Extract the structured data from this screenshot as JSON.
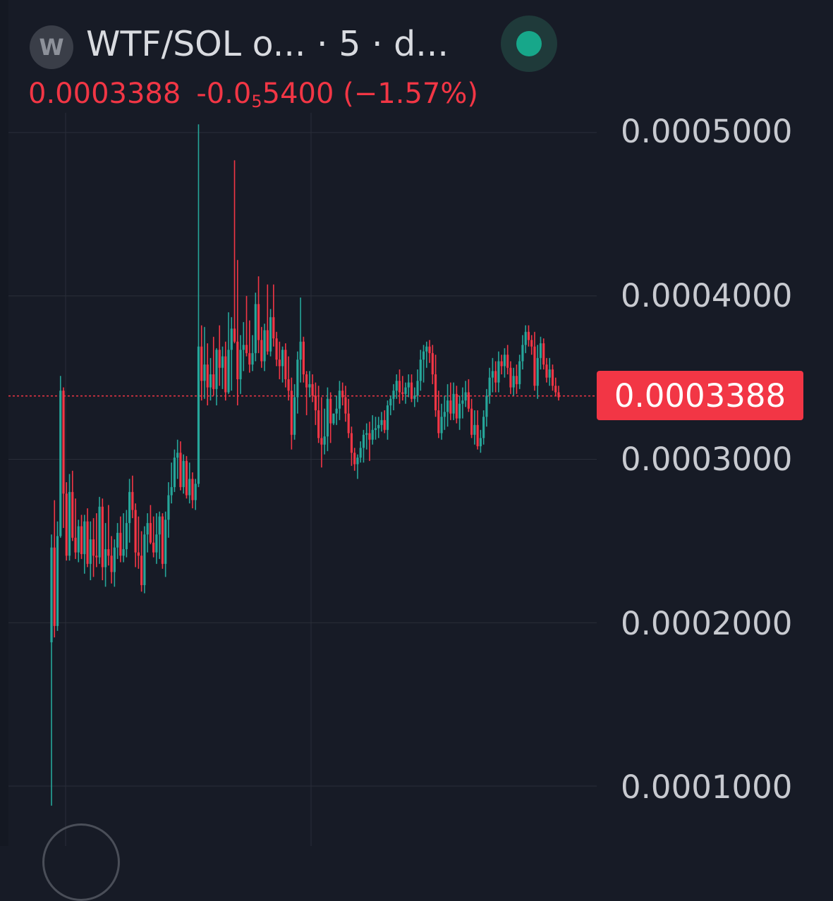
{
  "header": {
    "logo_letter": "W",
    "symbol_title": "WTF/SOL o... · 5 · d...",
    "price_main": "0.0003388",
    "change_prefix": "-0.0",
    "change_subscript": "5",
    "change_suffix": "5400",
    "change_percent": "(−1.57%)"
  },
  "price_badge": "0.0003388",
  "colors": {
    "background": "#171b26",
    "up": "#26a69a",
    "down": "#f23645",
    "grid": "#2a2e39",
    "live": "#17a78a"
  },
  "icons": {
    "live_status": "live-dot-icon"
  },
  "chart_data": {
    "type": "candlestick",
    "title": "WTF/SOL o... · 5 · d...",
    "y_ticks": [
      "0.0005000",
      "0.0004000",
      "0.0003000",
      "0.0002000",
      "0.0001000"
    ],
    "y_tick_values": [
      0.0005,
      0.0004,
      0.0003,
      0.0002,
      0.0001
    ],
    "ylim": [
      8.05e-05,
      0.0005055
    ],
    "last_price": 0.0003388,
    "grid": true,
    "candles": [
      [
        0.000188,
        0.000254,
        8.8e-05,
        0.000246
      ],
      [
        0.000246,
        0.000275,
        0.000191,
        0.000198
      ],
      [
        0.000198,
        0.000262,
        0.000195,
        0.000253
      ],
      [
        0.000253,
        0.000351,
        0.000252,
        0.000342
      ],
      [
        0.000342,
        0.000344,
        0.000258,
        0.000279
      ],
      [
        0.000279,
        0.000286,
        0.000238,
        0.000241
      ],
      [
        0.000241,
        0.000291,
        0.000238,
        0.00028
      ],
      [
        0.00028,
        0.000293,
        0.00025,
        0.000252
      ],
      [
        0.000252,
        0.000276,
        0.000239,
        0.000243
      ],
      [
        0.000243,
        0.000263,
        0.000237,
        0.000259
      ],
      [
        0.000259,
        0.000266,
        0.000239,
        0.000242
      ],
      [
        0.000242,
        0.000266,
        0.00023,
        0.000262
      ],
      [
        0.000262,
        0.00027,
        0.000234,
        0.000236
      ],
      [
        0.000236,
        0.000262,
        0.000226,
        0.000251
      ],
      [
        0.000251,
        0.000264,
        0.000228,
        0.000241
      ],
      [
        0.000241,
        0.000267,
        0.000234,
        0.00024
      ],
      [
        0.00024,
        0.000277,
        0.000236,
        0.000271
      ],
      [
        0.000271,
        0.000276,
        0.000226,
        0.000234
      ],
      [
        0.000234,
        0.000261,
        0.000222,
        0.000245
      ],
      [
        0.000245,
        0.000272,
        0.000235,
        0.000241
      ],
      [
        0.000241,
        0.000253,
        0.000224,
        0.000231
      ],
      [
        0.000231,
        0.000251,
        0.000222,
        0.000246
      ],
      [
        0.000246,
        0.000261,
        0.000239,
        0.000255
      ],
      [
        0.000255,
        0.000265,
        0.000237,
        0.000241
      ],
      [
        0.000241,
        0.000267,
        0.000237,
        0.000245
      ],
      [
        0.000245,
        0.000269,
        0.00024,
        0.000261
      ],
      [
        0.000261,
        0.000288,
        0.000249,
        0.00028
      ],
      [
        0.00028,
        0.00029,
        0.000264,
        0.000269
      ],
      [
        0.000269,
        0.000273,
        0.000234,
        0.000243
      ],
      [
        0.000243,
        0.000265,
        0.000233,
        0.000241
      ],
      [
        0.000241,
        0.000256,
        0.000219,
        0.000223
      ],
      [
        0.000223,
        0.000259,
        0.000218,
        0.000254
      ],
      [
        0.000254,
        0.000267,
        0.000243,
        0.000261
      ],
      [
        0.000261,
        0.000272,
        0.000248,
        0.000249
      ],
      [
        0.000249,
        0.000265,
        0.00024,
        0.000243
      ],
      [
        0.000243,
        0.000267,
        0.000236,
        0.000254
      ],
      [
        0.000254,
        0.000268,
        0.000239,
        0.000265
      ],
      [
        0.000265,
        0.000267,
        0.000233,
        0.000236
      ],
      [
        0.000236,
        0.000268,
        0.000228,
        0.000263
      ],
      [
        0.000263,
        0.000286,
        0.000252,
        0.000278
      ],
      [
        0.000278,
        0.000298,
        0.000273,
        0.000283
      ],
      [
        0.000283,
        0.000306,
        0.00028,
        0.000301
      ],
      [
        0.000301,
        0.000312,
        0.000288,
        0.000304
      ],
      [
        0.000304,
        0.000311,
        0.000281,
        0.000283
      ],
      [
        0.000283,
        0.000303,
        0.000279,
        0.000299
      ],
      [
        0.000299,
        0.000302,
        0.000276,
        0.000278
      ],
      [
        0.000278,
        0.000298,
        0.000273,
        0.000288
      ],
      [
        0.000288,
        0.000292,
        0.00027,
        0.000275
      ],
      [
        0.000275,
        0.000288,
        0.000269,
        0.000285
      ],
      [
        0.000285,
        0.000505,
        0.000283,
        0.000369
      ],
      [
        0.000369,
        0.000382,
        0.000336,
        0.000348
      ],
      [
        0.000348,
        0.000381,
        0.000337,
        0.000358
      ],
      [
        0.000358,
        0.000371,
        0.000333,
        0.000344
      ],
      [
        0.000344,
        0.000362,
        0.000336,
        0.000352
      ],
      [
        0.000352,
        0.000375,
        0.000339,
        0.000343
      ],
      [
        0.000343,
        0.000368,
        0.000333,
        0.000367
      ],
      [
        0.000367,
        0.000382,
        0.000345,
        0.000356
      ],
      [
        0.000356,
        0.000369,
        0.000343,
        0.000363
      ],
      [
        0.000363,
        0.000372,
        0.000336,
        0.000341
      ],
      [
        0.000341,
        0.00039,
        0.00034,
        0.000367
      ],
      [
        0.000367,
        0.000387,
        0.000342,
        0.00038
      ],
      [
        0.00038,
        0.000483,
        0.000371,
        0.000372
      ],
      [
        0.000372,
        0.000422,
        0.000333,
        0.000349
      ],
      [
        0.000349,
        0.000376,
        0.00034,
        0.000367
      ],
      [
        0.000367,
        0.000384,
        0.000354,
        0.00037
      ],
      [
        0.00037,
        0.0004,
        0.000363,
        0.000365
      ],
      [
        0.000365,
        0.000385,
        0.000353,
        0.000358
      ],
      [
        0.000358,
        0.000376,
        0.000354,
        0.000365
      ],
      [
        0.000365,
        0.000402,
        0.00036,
        0.000395
      ],
      [
        0.000395,
        0.000412,
        0.000365,
        0.000373
      ],
      [
        0.000373,
        0.000381,
        0.000356,
        0.00036
      ],
      [
        0.00036,
        0.000383,
        0.000354,
        0.000379
      ],
      [
        0.000379,
        0.000407,
        0.000364,
        0.000366
      ],
      [
        0.000366,
        0.000392,
        0.000363,
        0.000387
      ],
      [
        0.000387,
        0.000407,
        0.000369,
        0.000374
      ],
      [
        0.000374,
        0.000378,
        0.000357,
        0.000361
      ],
      [
        0.000361,
        0.000372,
        0.000349,
        0.000357
      ],
      [
        0.000357,
        0.000369,
        0.000347,
        0.000367
      ],
      [
        0.000367,
        0.000371,
        0.000344,
        0.000349
      ],
      [
        0.000349,
        0.000363,
        0.000336,
        0.000342
      ],
      [
        0.000342,
        0.00035,
        0.000306,
        0.000315
      ],
      [
        0.000315,
        0.000346,
        0.000312,
        0.000338
      ],
      [
        0.000338,
        0.000366,
        0.000328,
        0.000361
      ],
      [
        0.000361,
        0.000399,
        0.000347,
        0.000372
      ],
      [
        0.000372,
        0.000375,
        0.000347,
        0.000352
      ],
      [
        0.000352,
        0.000354,
        0.000327,
        0.000344
      ],
      [
        0.000344,
        0.000354,
        0.000338,
        0.000346
      ],
      [
        0.000346,
        0.000352,
        0.000335,
        0.000339
      ],
      [
        0.000339,
        0.000347,
        0.000321,
        0.00033
      ],
      [
        0.00033,
        0.000345,
        0.00031,
        0.000313
      ],
      [
        0.000313,
        0.000338,
        0.000295,
        0.000309
      ],
      [
        0.000309,
        0.000331,
        0.000303,
        0.000314
      ],
      [
        0.000314,
        0.000344,
        0.000305,
        0.000337
      ],
      [
        0.000337,
        0.000341,
        0.00031,
        0.000322
      ],
      [
        0.000322,
        0.000328,
        0.000321,
        0.000328
      ],
      [
        0.000328,
        0.000339,
        0.000321,
        0.000331
      ],
      [
        0.000331,
        0.000348,
        0.000324,
        0.000342
      ],
      [
        0.000342,
        0.000347,
        0.000333,
        0.000338
      ],
      [
        0.000338,
        0.000345,
        0.000323,
        0.000328
      ],
      [
        0.000328,
        0.000337,
        0.000313,
        0.000316
      ],
      [
        0.000316,
        0.00032,
        0.000296,
        0.000304
      ],
      [
        0.000304,
        0.000307,
        0.000293,
        0.000297
      ],
      [
        0.000297,
        0.000303,
        0.000288,
        0.000301
      ],
      [
        0.000301,
        0.000311,
        0.000298,
        0.000307
      ],
      [
        0.000307,
        0.000318,
        0.000298,
        0.000315
      ],
      [
        0.000315,
        0.000322,
        0.000306,
        0.000316
      ],
      [
        0.000316,
        0.000323,
        0.000299,
        0.000312
      ],
      [
        0.000312,
        0.000327,
        0.000309,
        0.000318
      ],
      [
        0.000318,
        0.000326,
        0.000312,
        0.000319
      ],
      [
        0.000319,
        0.000326,
        0.000313,
        0.000321
      ],
      [
        0.000321,
        0.000329,
        0.000317,
        0.000324
      ],
      [
        0.000324,
        0.00033,
        0.000316,
        0.000318
      ],
      [
        0.000318,
        0.000336,
        0.000312,
        0.000333
      ],
      [
        0.000333,
        0.000339,
        0.000327,
        0.000337
      ],
      [
        0.000337,
        0.000346,
        0.00033,
        0.000342
      ],
      [
        0.000342,
        0.000352,
        0.000337,
        0.000348
      ],
      [
        0.000348,
        0.000355,
        0.000334,
        0.000341
      ],
      [
        0.000341,
        0.000351,
        0.000336,
        0.00034
      ],
      [
        0.00034,
        0.000347,
        0.000334,
        0.000344
      ],
      [
        0.000344,
        0.000352,
        0.000338,
        0.000347
      ],
      [
        0.000347,
        0.000352,
        0.000335,
        0.000337
      ],
      [
        0.000337,
        0.000344,
        0.000332,
        0.000339
      ],
      [
        0.000339,
        0.000355,
        0.000335,
        0.000348
      ],
      [
        0.000348,
        0.000367,
        0.000342,
        0.000361
      ],
      [
        0.000361,
        0.00037,
        0.000347,
        0.000366
      ],
      [
        0.000366,
        0.000372,
        0.000356,
        0.000369
      ],
      [
        0.000369,
        0.000373,
        0.000359,
        0.000365
      ],
      [
        0.000365,
        0.00037,
        0.000346,
        0.000352
      ],
      [
        0.000352,
        0.000364,
        0.000326,
        0.00033
      ],
      [
        0.00033,
        0.000342,
        0.000313,
        0.000316
      ],
      [
        0.000316,
        0.000334,
        0.000312,
        0.000326
      ],
      [
        0.000326,
        0.000339,
        0.000318,
        0.000329
      ],
      [
        0.000329,
        0.000346,
        0.00032,
        0.000336
      ],
      [
        0.000336,
        0.000347,
        0.000324,
        0.000328
      ],
      [
        0.000328,
        0.000347,
        0.000324,
        0.00034
      ],
      [
        0.00034,
        0.000345,
        0.000322,
        0.000325
      ],
      [
        0.000325,
        0.000339,
        0.000318,
        0.000334
      ],
      [
        0.000334,
        0.000344,
        0.000325,
        0.000336
      ],
      [
        0.000336,
        0.000348,
        0.000332,
        0.000341
      ],
      [
        0.000341,
        0.000349,
        0.000329,
        0.000331
      ],
      [
        0.000331,
        0.000337,
        0.000313,
        0.000315
      ],
      [
        0.000315,
        0.00033,
        0.000309,
        0.000321
      ],
      [
        0.000321,
        0.00033,
        0.000306,
        0.000308
      ],
      [
        0.000308,
        0.000318,
        0.000304,
        0.000313
      ],
      [
        0.000313,
        0.00033,
        0.000309,
        0.000326
      ],
      [
        0.000326,
        0.000343,
        0.00032,
        0.000339
      ],
      [
        0.000339,
        0.000356,
        0.000334,
        0.00035
      ],
      [
        0.00035,
        0.000362,
        0.000341,
        0.000354
      ],
      [
        0.000354,
        0.00036,
        0.000341,
        0.000347
      ],
      [
        0.000347,
        0.000366,
        0.000341,
        0.00036
      ],
      [
        0.00036,
        0.000364,
        0.000352,
        0.000357
      ],
      [
        0.000357,
        0.000368,
        0.00035,
        0.000364
      ],
      [
        0.000364,
        0.00037,
        0.000352,
        0.000356
      ],
      [
        0.000356,
        0.00036,
        0.00034,
        0.000344
      ],
      [
        0.000344,
        0.000356,
        0.000339,
        0.000351
      ],
      [
        0.000351,
        0.000358,
        0.00034,
        0.000346
      ],
      [
        0.000346,
        0.000364,
        0.000343,
        0.00036
      ],
      [
        0.00036,
        0.000376,
        0.000355,
        0.00037
      ],
      [
        0.00037,
        0.000382,
        0.000365,
        0.000378
      ],
      [
        0.000378,
        0.000382,
        0.000369,
        0.000373
      ],
      [
        0.000373,
        0.000376,
        0.000364,
        0.000369
      ],
      [
        0.000369,
        0.000378,
        0.000342,
        0.000345
      ],
      [
        0.000345,
        0.00037,
        0.000337,
        0.000362
      ],
      [
        0.000362,
        0.000375,
        0.000355,
        0.000371
      ],
      [
        0.000371,
        0.000374,
        0.000355,
        0.000358
      ],
      [
        0.000358,
        0.000362,
        0.000347,
        0.00035
      ],
      [
        0.00035,
        0.000362,
        0.000345,
        0.000355
      ],
      [
        0.000355,
        0.000358,
        0.000342,
        0.000345
      ],
      [
        0.000345,
        0.00035,
        0.000339,
        0.000341
      ],
      [
        0.000341,
        0.000345,
        0.000336,
        0.000338
      ]
    ]
  }
}
